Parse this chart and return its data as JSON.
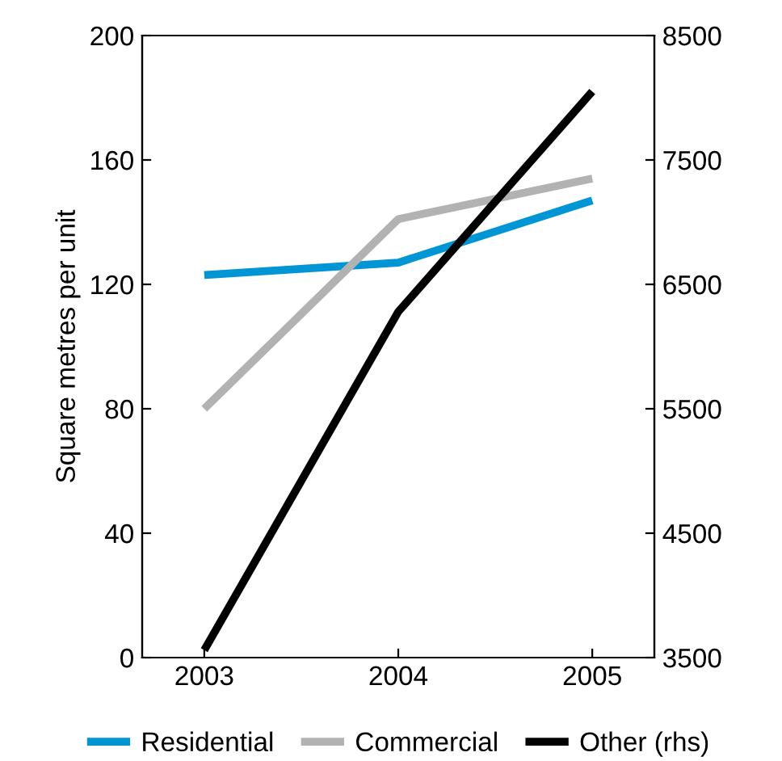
{
  "chart_data": {
    "type": "line",
    "ylabel": "Square metres per unit",
    "categories": [
      "2003",
      "2004",
      "2005"
    ],
    "series": [
      {
        "name": "Residential",
        "color": "#0096d6",
        "values": [
          123,
          127,
          147
        ]
      },
      {
        "name": "Commercial",
        "color": "#b2b2b2",
        "values": [
          80,
          141,
          154
        ]
      },
      {
        "name": "Other (rhs)",
        "color": "#000000",
        "values": [
          3560,
          6280,
          8050
        ],
        "axis": "y2"
      }
    ],
    "ylim": [
      0,
      200
    ],
    "yticks": [
      0,
      40,
      80,
      120,
      160,
      200
    ],
    "y2lim": [
      3500,
      8500
    ],
    "y2ticks": [
      3500,
      4500,
      5500,
      6500,
      7500,
      8500
    ],
    "grid": false,
    "legend": "bottom",
    "marker": "none",
    "line_style": "solid"
  }
}
